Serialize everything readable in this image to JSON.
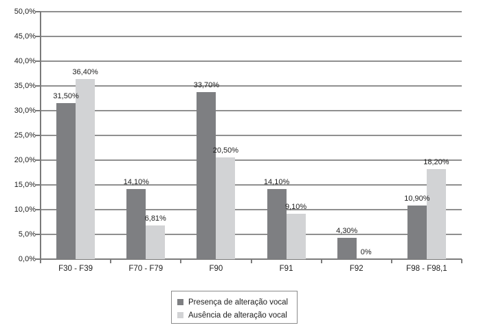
{
  "chart_data": {
    "type": "bar",
    "title": "",
    "xlabel": "",
    "ylabel": "",
    "categories": [
      "F30 - F39",
      "F70 - F79",
      "F90",
      "F91",
      "F92",
      "F98 - F98,1"
    ],
    "series": [
      {
        "name": "Presença de alteração vocal",
        "color": "#7e7f82",
        "values": [
          31.5,
          14.1,
          33.7,
          14.1,
          4.3,
          10.9
        ],
        "labels": [
          "31,50%",
          "14,10%",
          "33,70%",
          "14,10%",
          "4,30%",
          "10,90%"
        ]
      },
      {
        "name": "Ausência de alteração vocal",
        "color": "#d2d3d5",
        "values": [
          36.4,
          6.81,
          20.5,
          9.1,
          0,
          18.2
        ],
        "labels": [
          "36,40%",
          "6,81%",
          "20,50%",
          "9,10%",
          "0%",
          "18,20%"
        ]
      }
    ],
    "y_axis": {
      "min": 0,
      "max": 50,
      "step": 5,
      "tick_labels": [
        "50,0%",
        "45,0%",
        "40,0%",
        "35,0%",
        "30,0%",
        "25,0%",
        "20,0%",
        "15,0%",
        "10,0%",
        "5,0%",
        "0,0%"
      ]
    },
    "legend": {
      "position": "bottom-center",
      "boxed": true
    },
    "grid": true,
    "colors": {
      "grid": "#8f8f8f",
      "axis": "#7a7a7a",
      "text": "#1c1c1c",
      "background": "#ffffff"
    }
  }
}
